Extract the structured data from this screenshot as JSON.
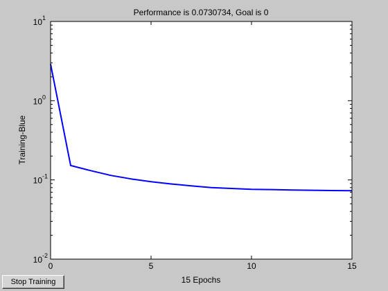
{
  "window": {
    "background": "#c8c8c8"
  },
  "controls": {
    "stop_training_label": "Stop Training"
  },
  "chart_data": {
    "type": "line",
    "title": "Performance is 0.0730734, Goal is 0",
    "xlabel": "15 Epochs",
    "ylabel": "Training-Blue",
    "xlim": [
      0,
      15
    ],
    "ylim": [
      0.01,
      10
    ],
    "yscale": "log",
    "grid": false,
    "x_ticks": [
      {
        "v": 0,
        "label": "0"
      },
      {
        "v": 5,
        "label": "5"
      },
      {
        "v": 10,
        "label": "10"
      },
      {
        "v": 15,
        "label": "15"
      }
    ],
    "y_ticks": [
      {
        "v": 10,
        "base": "10",
        "exp": "1"
      },
      {
        "v": 1,
        "base": "10",
        "exp": "0"
      },
      {
        "v": 0.1,
        "base": "10",
        "exp": "-1"
      },
      {
        "v": 0.01,
        "base": "10",
        "exp": "-2"
      }
    ],
    "series": [
      {
        "color": "#0000ff",
        "x": [
          0,
          1,
          2,
          3,
          4,
          5,
          6,
          7,
          8,
          9,
          10,
          11,
          12,
          13,
          14,
          15
        ],
        "y": [
          2.9,
          0.152,
          0.131,
          0.114,
          0.103,
          0.095,
          0.089,
          0.084,
          0.08,
          0.078,
          0.076,
          0.0755,
          0.0745,
          0.074,
          0.0735,
          0.0731
        ]
      }
    ]
  }
}
